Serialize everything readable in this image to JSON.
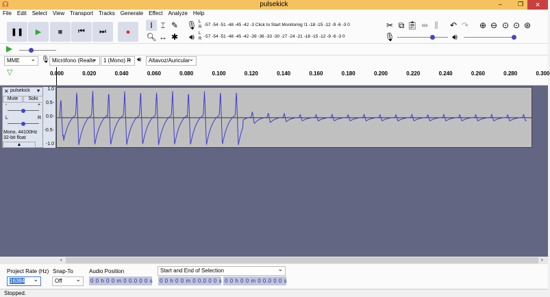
{
  "window": {
    "title": "pulsekick",
    "minimize": "–",
    "maximize": "❐",
    "close": "✕"
  },
  "menu": [
    "File",
    "Edit",
    "Select",
    "View",
    "Transport",
    "Tracks",
    "Generate",
    "Effect",
    "Analyze",
    "Help"
  ],
  "meters": {
    "record_scale": "-57 -54 -51 -48 -45 -42 -3 Click to Start Monitoring !1 -18 -15 -12 -9 -6 -3 0",
    "play_scale": "-57 -54 -51 -48 -45 -42 -39 -36 -33 -30 -27 -24 -21 -18 -15 -12 -9 -6 -3 0",
    "L": "L",
    "R": "R"
  },
  "devices": {
    "host": "MME",
    "input": "Micrófono (Realte",
    "channels": "1 (Mono) R",
    "output": "Altavoz/Auricular"
  },
  "ruler": [
    "0.000",
    "0.020",
    "0.040",
    "0.060",
    "0.080",
    "0.100",
    "0.120",
    "0.140",
    "0.160",
    "0.180",
    "0.200",
    "0.220",
    "0.240",
    "0.260",
    "0.280",
    "0.300"
  ],
  "track": {
    "name": "pulsekick",
    "mute": "Mute",
    "solo": "Solo",
    "minus": "-",
    "plus": "+",
    "L": "L",
    "R": "R",
    "info1": "Mono, 44100Hz",
    "info2": "32-bit float",
    "yticks": [
      "1.0",
      "0.5-",
      "0.0-",
      "-0.5-",
      "-1.0"
    ],
    "color": "#3b3bcc"
  },
  "bottom": {
    "rate_label": "Project Rate (Hz)",
    "rate_value": "16384",
    "snap_label": "Snap-To",
    "snap_value": "Off",
    "pos_label": "Audio Position",
    "pos_value": "0 0 h 0 0 m 0 0.0 0 0 s",
    "sel_label": "Start and End of Selection",
    "sel_start": "0 0 h 0 0 m 0 0.0 0 0 s",
    "sel_end": "0 0 h 0 0 m 0 0.0 0 0 s"
  },
  "status": "Stopped."
}
